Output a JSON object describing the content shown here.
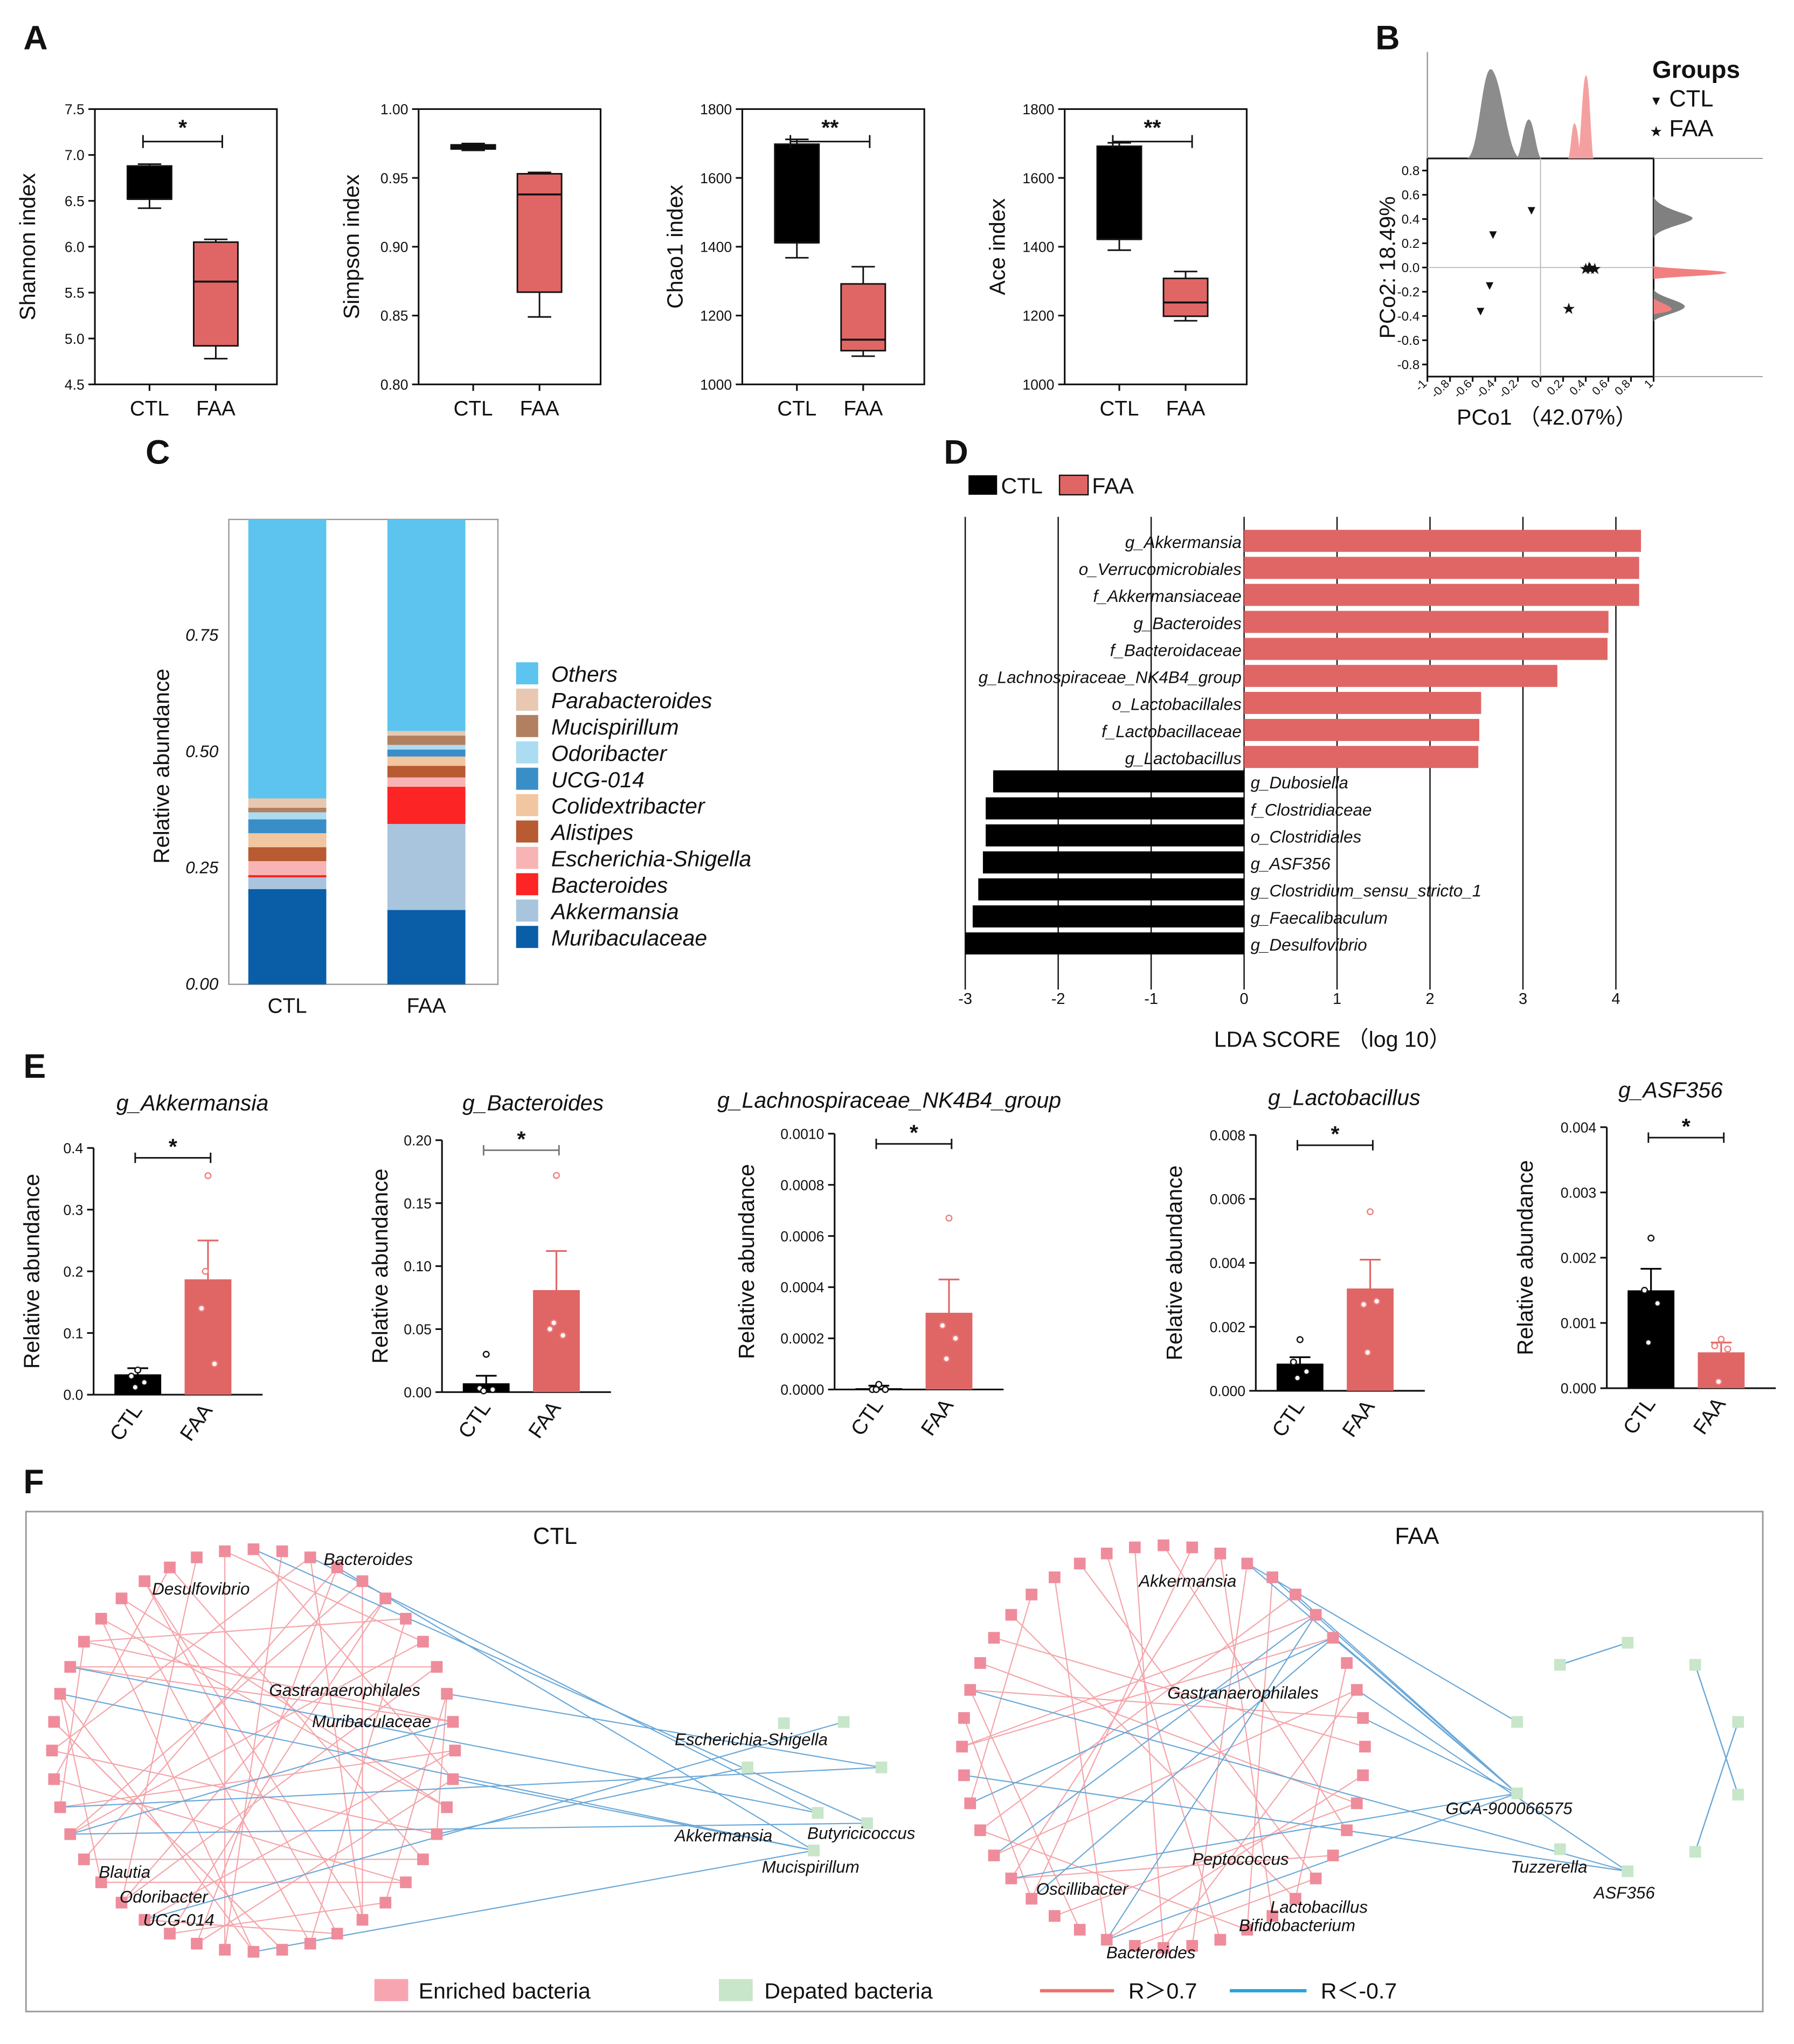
{
  "colors": {
    "ctl": "#000000",
    "faa": "#e06666",
    "faa_dot": "#f08080",
    "grey": "#808080",
    "enriched": "#ef8c9b",
    "depleted": "#c8e6c9",
    "pos": "#f4a5aa",
    "neg": "#6aa8d8",
    "pos_legend": "#f07070",
    "neg_legend": "#2aa3d8"
  },
  "panels": {
    "a": "A",
    "b": "B",
    "c": "C",
    "d": "D",
    "e": "E",
    "f": "F"
  },
  "chart_data": [
    {
      "id": "A1",
      "type": "box",
      "ylabel": "Shannon index",
      "categories": [
        "CTL",
        "FAA"
      ],
      "ylim": [
        4.5,
        7.5
      ],
      "yticks": [
        "4.5",
        "5.0",
        "5.5",
        "6.0",
        "6.5",
        "7.0",
        "7.5"
      ],
      "sig": "*",
      "boxes": [
        {
          "min": 6.42,
          "q1": 6.52,
          "median": 6.52,
          "q3": 6.88,
          "max": 6.9
        },
        {
          "min": 4.78,
          "q1": 4.92,
          "median": 5.62,
          "q3": 6.05,
          "max": 6.08
        }
      ]
    },
    {
      "id": "A2",
      "type": "box",
      "ylabel": "Simpson index",
      "categories": [
        "CTL",
        "FAA"
      ],
      "ylim": [
        0.8,
        1.0
      ],
      "yticks": [
        "0.80",
        "0.85",
        "0.90",
        "0.95",
        "1.00"
      ],
      "sig": "",
      "boxes": [
        {
          "min": 0.97,
          "q1": 0.971,
          "median": 0.9725,
          "q3": 0.974,
          "max": 0.975
        },
        {
          "min": 0.849,
          "q1": 0.867,
          "median": 0.938,
          "q3": 0.953,
          "max": 0.954
        }
      ]
    },
    {
      "id": "A3",
      "type": "box",
      "ylabel": "Chao1 index",
      "categories": [
        "CTL",
        "FAA"
      ],
      "ylim": [
        1000,
        1800
      ],
      "yticks": [
        "1000",
        "1200",
        "1400",
        "1600",
        "1800"
      ],
      "sig": "**",
      "boxes": [
        {
          "min": 1368,
          "q1": 1412,
          "median": 1412,
          "q3": 1698,
          "max": 1712
        },
        {
          "min": 1082,
          "q1": 1098,
          "median": 1130,
          "q3": 1292,
          "max": 1342
        }
      ]
    },
    {
      "id": "A4",
      "type": "box",
      "ylabel": "Ace index",
      "categories": [
        "CTL",
        "FAA"
      ],
      "ylim": [
        1000,
        1800
      ],
      "yticks": [
        "1000",
        "1200",
        "1400",
        "1600",
        "1800"
      ],
      "sig": "**",
      "boxes": [
        {
          "min": 1390,
          "q1": 1422,
          "median": 1422,
          "q3": 1692,
          "max": 1702
        },
        {
          "min": 1185,
          "q1": 1198,
          "median": 1238,
          "q3": 1308,
          "max": 1328
        }
      ]
    },
    {
      "id": "B",
      "type": "scatter",
      "xlabel": "PCo1  （42.07%）",
      "ylabel": "PCo2: 18.49%",
      "xlim": [
        -1,
        1
      ],
      "ylim": [
        -0.9,
        0.9
      ],
      "xticks": [
        "-1",
        "-0.8",
        "-0.6",
        "-0.4",
        "-0.2",
        "0",
        "0.2",
        "0.4",
        "0.6",
        "0.8",
        "1"
      ],
      "yticks": [
        "-0.8",
        "-0.6",
        "-0.4",
        "-0.2",
        "0.0",
        "0.2",
        "0.4",
        "0.6",
        "0.8"
      ],
      "legend_title": "Groups",
      "legend": [
        "CTL",
        "FAA"
      ],
      "series": [
        {
          "name": "CTL",
          "marker": "▼",
          "points": [
            [
              -0.08,
              0.48
            ],
            [
              -0.42,
              0.28
            ],
            [
              -0.45,
              -0.14
            ],
            [
              -0.53,
              -0.35
            ]
          ]
        },
        {
          "name": "FAA",
          "marker": "★",
          "points": [
            [
              0.4,
              -0.01
            ],
            [
              0.43,
              0.0
            ],
            [
              0.44,
              -0.01
            ],
            [
              0.48,
              -0.01
            ],
            [
              0.25,
              -0.34
            ]
          ]
        }
      ]
    },
    {
      "id": "C",
      "type": "stacked_bar",
      "ylabel": "Relative abundance",
      "categories": [
        "CTL",
        "FAA"
      ],
      "ylim": [
        0,
        1
      ],
      "yticks": [
        "0.00",
        "0.25",
        "0.50",
        "0.75"
      ],
      "series": [
        {
          "name": "Muribaculaceae",
          "color": "#0a5ea8",
          "values": [
            0.205,
            0.16
          ]
        },
        {
          "name": "Akkermansia",
          "color": "#a9c5de",
          "values": [
            0.025,
            0.185
          ]
        },
        {
          "name": "Bacteroides",
          "color": "#fc2424",
          "values": [
            0.005,
            0.08
          ]
        },
        {
          "name": "Escherichia-Shigella",
          "color": "#f8b4b4",
          "values": [
            0.03,
            0.02
          ]
        },
        {
          "name": "Alistipes",
          "color": "#b85a32",
          "values": [
            0.03,
            0.025
          ]
        },
        {
          "name": "Colidextribacter",
          "color": "#f2c6a0",
          "values": [
            0.03,
            0.02
          ]
        },
        {
          "name": "UCG-014",
          "color": "#3a8ec8",
          "values": [
            0.03,
            0.015
          ]
        },
        {
          "name": "Odoribacter",
          "color": "#acdcf2",
          "values": [
            0.015,
            0.01
          ]
        },
        {
          "name": "Mucispirillum",
          "color": "#b08060",
          "values": [
            0.01,
            0.02
          ]
        },
        {
          "name": "Parabacteroides",
          "color": "#e8c8b0",
          "values": [
            0.02,
            0.01
          ]
        },
        {
          "name": "Others",
          "color": "#5cc4ee",
          "values": [
            0.6,
            0.455
          ]
        }
      ]
    },
    {
      "id": "D",
      "type": "diverging_bar",
      "xlabel": "LDA SCORE  （log 10）",
      "legend": [
        "CTL",
        "FAA"
      ],
      "xlim": [
        -3,
        4.3
      ],
      "xticks": [
        "-3",
        "-2",
        "-1",
        "0",
        "1",
        "2",
        "3",
        "4"
      ],
      "items": [
        {
          "label": "g_Akkermansia",
          "value": 4.27
        },
        {
          "label": "o_Verrucomicrobiales",
          "value": 4.25
        },
        {
          "label": "f_Akkermansiaceae",
          "value": 4.25
        },
        {
          "label": "g_Bacteroides",
          "value": 3.92
        },
        {
          "label": "f_Bacteroidaceae",
          "value": 3.91
        },
        {
          "label": "g_Lachnospiraceae_NK4B4_group",
          "value": 3.37
        },
        {
          "label": "o_Lactobacillales",
          "value": 2.55
        },
        {
          "label": "f_Lactobacillaceae",
          "value": 2.53
        },
        {
          "label": "g_Lactobacillus",
          "value": 2.52
        },
        {
          "label": "g_Dubosiella",
          "value": -2.7
        },
        {
          "label": "f_Clostridiaceae",
          "value": -2.78
        },
        {
          "label": "o_Clostridiales",
          "value": -2.78
        },
        {
          "label": "g_ASF356",
          "value": -2.81
        },
        {
          "label": "g_Clostridium_sensu_stricto_1",
          "value": -2.86
        },
        {
          "label": "g_Faecalibaculum",
          "value": -2.92
        },
        {
          "label": "g_Desulfovibrio",
          "value": -3.0
        }
      ]
    },
    {
      "id": "E1",
      "type": "bar_dots",
      "title": "g_Akkermansia",
      "ylabel": "Relative abundance",
      "categories": [
        "CTL",
        "FAA"
      ],
      "ylim": [
        0,
        0.4
      ],
      "yticks": [
        "0.0",
        "0.1",
        "0.2",
        "0.3",
        "0.4"
      ],
      "sig": "*",
      "means": [
        0.033,
        0.187
      ],
      "errors": [
        0.01,
        0.063
      ],
      "points": [
        [
          0.04,
          0.03,
          0.02,
          0.012
        ],
        [
          0.355,
          0.14,
          0.05,
          0.2
        ]
      ]
    },
    {
      "id": "E2",
      "type": "bar_dots",
      "title": "g_Bacteroides",
      "ylabel": "Relative abundance",
      "categories": [
        "CTL",
        "FAA"
      ],
      "ylim": [
        0,
        0.2
      ],
      "yticks": [
        "0.00",
        "0.05",
        "0.10",
        "0.15",
        "0.20"
      ],
      "sig": "*",
      "means": [
        0.007,
        0.081
      ],
      "errors": [
        0.006,
        0.031
      ],
      "points": [
        [
          0.03,
          0.003,
          0.002,
          0.001
        ],
        [
          0.172,
          0.05,
          0.045,
          0.055
        ]
      ]
    },
    {
      "id": "E3",
      "type": "bar_dots",
      "title": "g_Lachnospiraceae_NK4B4_group",
      "ylabel": "Relative abundance",
      "categories": [
        "CTL",
        "FAA"
      ],
      "ylim": [
        0,
        0.001
      ],
      "yticks": [
        "0.0000",
        "0.0002",
        "0.0004",
        "0.0006",
        "0.0008",
        "0.0010"
      ],
      "sig": "*",
      "means": [
        5e-06,
        0.0003
      ],
      "errors": [
        1e-05,
        0.00013
      ],
      "points": [
        [
          2e-05,
          0.0,
          0.0,
          0.0
        ],
        [
          0.00067,
          0.00025,
          0.0002,
          0.00012
        ]
      ]
    },
    {
      "id": "E4",
      "type": "bar_dots",
      "title": "g_Lactobacillus",
      "ylabel": "Relative abundance",
      "categories": [
        "CTL",
        "FAA"
      ],
      "ylim": [
        0,
        0.008
      ],
      "yticks": [
        "0.000",
        "0.002",
        "0.004",
        "0.006",
        "0.008"
      ],
      "sig": "*",
      "means": [
        0.00085,
        0.0032
      ],
      "errors": [
        0.0002,
        0.0009
      ],
      "points": [
        [
          0.0016,
          0.0009,
          0.0006,
          0.0004
        ],
        [
          0.0056,
          0.0027,
          0.0028,
          0.0012
        ]
      ]
    },
    {
      "id": "E5",
      "type": "bar_dots",
      "title": "g_ASF356",
      "ylabel": "Relative abundance",
      "categories": [
        "CTL",
        "FAA"
      ],
      "ylim": [
        0,
        0.004
      ],
      "yticks": [
        "0.000",
        "0.001",
        "0.002",
        "0.003",
        "0.004"
      ],
      "sig": "*",
      "means": [
        0.0015,
        0.00055
      ],
      "errors": [
        0.00033,
        0.00015
      ],
      "points": [
        [
          0.0023,
          0.0015,
          0.0013,
          0.0007
        ],
        [
          0.00075,
          0.00065,
          0.0006,
          0.0001
        ]
      ]
    }
  ],
  "network": {
    "ctl": {
      "title": "CTL",
      "labels": [
        "Bacteroides",
        "Desulfovibrio",
        "Gastranaerophilales",
        "Muribaculaceae",
        "Escherichia-Shigella",
        "Akkermansia",
        "Butyricicoccus",
        "Mucispirillum",
        "Blautia",
        "Odoribacter",
        "UCG-014"
      ]
    },
    "faa": {
      "title": "FAA",
      "labels": [
        "Akkermansia",
        "Gastranaerophilales",
        "GCA-900066575",
        "Tuzzerella",
        "ASF356",
        "Peptococcus",
        "Oscillibacter",
        "Lactobacillus",
        "Bifidobacterium",
        "Bacteroides"
      ]
    },
    "legend": [
      "Enriched bacteria",
      "Depated bacteria",
      "R＞0.7",
      "R＜-0.7"
    ]
  }
}
